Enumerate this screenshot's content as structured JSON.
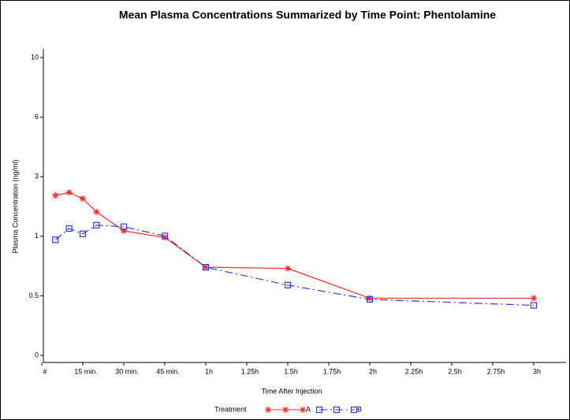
{
  "chart_data": {
    "type": "line",
    "title": "Mean Plasma Concentrations Summarized by Time Point: Phentolamine",
    "x_label": "Time After Injection",
    "y_label": "Plasma Concentration (ng/ml)",
    "legend_title": "Treatment",
    "legend_position": "bottom",
    "x": [
      0.083,
      0.167,
      0.25,
      0.333,
      0.5,
      0.75,
      1,
      1.5,
      2,
      3
    ],
    "xlim": [
      0,
      3.17
    ],
    "xticks": [
      {
        "value": 0,
        "label": "#"
      },
      {
        "value": 0.25,
        "label": "15 min."
      },
      {
        "value": 0.5,
        "label": "30 min."
      },
      {
        "value": 0.75,
        "label": "45 min."
      },
      {
        "value": 1,
        "label": "1h"
      },
      {
        "value": 1.25,
        "label": "1.25h"
      },
      {
        "value": 1.5,
        "label": "1.5h"
      },
      {
        "value": 1.75,
        "label": "1.75h"
      },
      {
        "value": 2,
        "label": "2h"
      },
      {
        "value": 2.25,
        "label": "2.25h"
      },
      {
        "value": 2.5,
        "label": "2.5h"
      },
      {
        "value": 2.75,
        "label": "2.75h"
      },
      {
        "value": 3,
        "label": "3h"
      }
    ],
    "ylim": [
      0,
      10
    ],
    "yticks": [
      0,
      0.5,
      1,
      3,
      6,
      10
    ],
    "yscale": "piecewise",
    "series": [
      {
        "name": "A",
        "color": "#ff2a2a",
        "marker": "star",
        "linestyle": "solid",
        "values": [
          2.37,
          2.47,
          2.26,
          1.82,
          1.18,
          0.99,
          0.74,
          0.73,
          0.48,
          0.48
        ]
      },
      {
        "name": "B",
        "color": "#2a3ae0",
        "marker": "square",
        "linestyle": "dashdot",
        "values": [
          0.97,
          1.26,
          1.08,
          1.37,
          1.32,
          1.01,
          0.74,
          0.59,
          0.47,
          0.42
        ]
      }
    ]
  }
}
